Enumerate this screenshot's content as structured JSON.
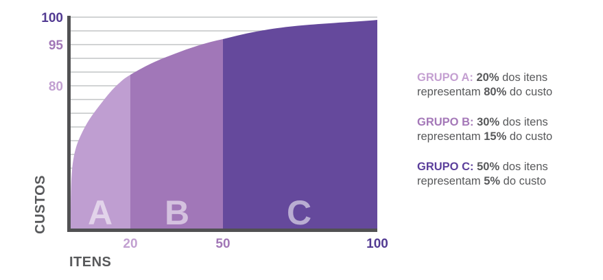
{
  "palette": {
    "background": "#ffffff",
    "grid": "#d1d3d4",
    "axis": "#515153",
    "text_gray": "#58595b",
    "region_letter": "rgba(255,255,255,0.55)",
    "light_purple": "#c2a0d1",
    "medium_purple": "#a277b7",
    "dark_purple": "#523a92"
  },
  "chart_data": {
    "type": "area",
    "xlabel": "ITENS",
    "ylabel": "CUSTOS",
    "grid": true,
    "xlim": [
      0,
      100
    ],
    "ylim": [
      0,
      100
    ],
    "x_ticks": [
      {
        "label": "20",
        "value": 20,
        "color": "#c2a0d1"
      },
      {
        "label": "50",
        "value": 50,
        "color": "#a277b7"
      },
      {
        "label": "100",
        "value": 100,
        "color": "#523a92"
      }
    ],
    "y_ticks": [
      {
        "label": "100",
        "value": 100,
        "color": "#523a92"
      },
      {
        "label": "95",
        "value": 95,
        "color": "#a277b7"
      },
      {
        "label": "80",
        "value": 80,
        "color": "#c2a0d1"
      }
    ],
    "curve_points": [
      [
        0,
        0
      ],
      [
        20,
        80
      ],
      [
        50,
        95
      ],
      [
        100,
        100
      ]
    ],
    "regions": [
      {
        "letter": "A",
        "items_from": 0,
        "items_to": 20,
        "items_pct": 20,
        "cost_pct": 80,
        "fill": "#bf9ed1"
      },
      {
        "letter": "B",
        "items_from": 20,
        "items_to": 50,
        "items_pct": 30,
        "cost_pct": 15,
        "fill": "#a177b8"
      },
      {
        "letter": "C",
        "items_from": 50,
        "items_to": 100,
        "items_pct": 50,
        "cost_pct": 5,
        "fill": "#65499c"
      }
    ]
  },
  "legend": {
    "groups": [
      {
        "heading": "GRUPO A:",
        "heading_color": "#c49fd1",
        "segments": [
          {
            "text": "20%",
            "bold": true
          },
          {
            "text": " dos itens representam ",
            "bold": false
          },
          {
            "text": "80%",
            "bold": true
          },
          {
            "text": " do custo",
            "bold": false
          }
        ]
      },
      {
        "heading": "GRUPO B:",
        "heading_color": "#a478b8",
        "segments": [
          {
            "text": "30%",
            "bold": true
          },
          {
            "text": " dos itens representam ",
            "bold": false
          },
          {
            "text": "15%",
            "bold": true
          },
          {
            "text": " do custo",
            "bold": false
          }
        ]
      },
      {
        "heading": "GRUPO C:",
        "heading_color": "#5b3f9b",
        "segments": [
          {
            "text": "50%",
            "bold": true
          },
          {
            "text": " dos itens representam ",
            "bold": false
          },
          {
            "text": "5%",
            "bold": true
          },
          {
            "text": " do custo",
            "bold": false
          }
        ]
      }
    ]
  }
}
